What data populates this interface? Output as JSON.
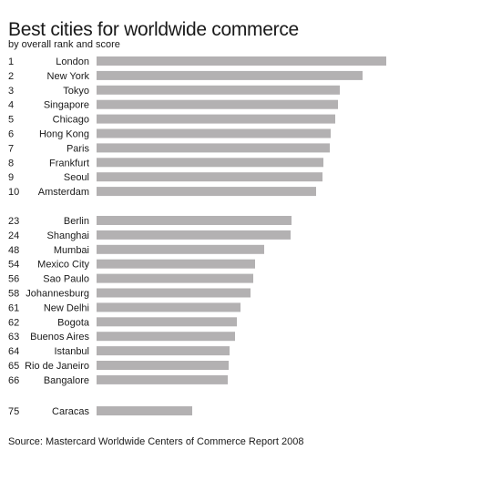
{
  "header": {
    "title": "Best cities for worldwide commerce",
    "subtitle": "by overall rank and score"
  },
  "footer": {
    "source": "Source: Mastercard Worldwide Centers of Commerce Report 2008"
  },
  "colors": {
    "bar": "#b3b1b2",
    "text": "#1a1a1a",
    "background": "#ffffff"
  },
  "chart_data": {
    "type": "bar",
    "orientation": "horizontal",
    "title": "Best cities for worldwide commerce",
    "subtitle": "by overall rank and score",
    "axis_shown": false,
    "grid": false,
    "value_scale": "relative bar length (px at 528px canvas)",
    "groups": [
      {
        "items": [
          {
            "rank": "1",
            "city": "London",
            "value": 318
          },
          {
            "rank": "2",
            "city": "New York",
            "value": 292
          },
          {
            "rank": "3",
            "city": "Tokyo",
            "value": 267
          },
          {
            "rank": "4",
            "city": "Singapore",
            "value": 265
          },
          {
            "rank": "5",
            "city": "Chicago",
            "value": 262
          },
          {
            "rank": "6",
            "city": "Hong Kong",
            "value": 257
          },
          {
            "rank": "7",
            "city": "Paris",
            "value": 256
          },
          {
            "rank": "8",
            "city": "Frankfurt",
            "value": 249
          },
          {
            "rank": "9",
            "city": "Seoul",
            "value": 248
          },
          {
            "rank": "10",
            "city": "Amsterdam",
            "value": 241
          }
        ]
      },
      {
        "items": [
          {
            "rank": "23",
            "city": "Berlin",
            "value": 214
          },
          {
            "rank": "24",
            "city": "Shanghai",
            "value": 213
          },
          {
            "rank": "48",
            "city": "Mumbai",
            "value": 184
          },
          {
            "rank": "54",
            "city": "Mexico City",
            "value": 174
          },
          {
            "rank": "56",
            "city": "Sao Paulo",
            "value": 172
          },
          {
            "rank": "58",
            "city": "Johannesburg",
            "value": 169
          },
          {
            "rank": "61",
            "city": "New Delhi",
            "value": 158
          },
          {
            "rank": "62",
            "city": "Bogota",
            "value": 154
          },
          {
            "rank": "63",
            "city": "Buenos Aires",
            "value": 152
          },
          {
            "rank": "64",
            "city": "Istanbul",
            "value": 146
          },
          {
            "rank": "65",
            "city": "Rio de Janeiro",
            "value": 145
          },
          {
            "rank": "66",
            "city": "Bangalore",
            "value": 144
          }
        ]
      },
      {
        "items": [
          {
            "rank": "75",
            "city": "Caracas",
            "value": 105
          }
        ]
      }
    ]
  }
}
